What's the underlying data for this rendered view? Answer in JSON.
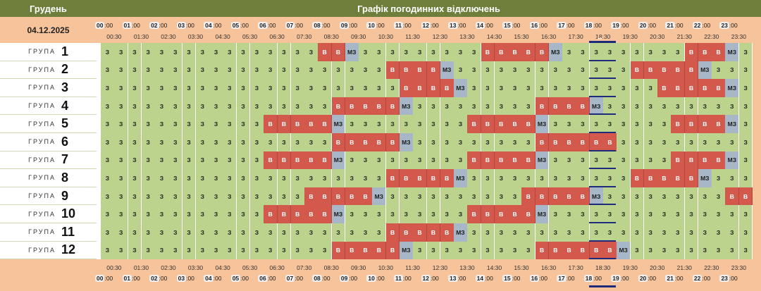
{
  "header": {
    "month": "Грудень",
    "title": "Графік погодинних відключень",
    "date": "04.12.2025"
  },
  "hours": [
    "00",
    "01",
    "02",
    "03",
    "04",
    "05",
    "06",
    "07",
    "08",
    "09",
    "10",
    "11",
    "12",
    "13",
    "14",
    "15",
    "16",
    "17",
    "18",
    "19",
    "20",
    "21",
    "22",
    "23"
  ],
  "hour_suffix": ":00",
  "half_hours": [
    "00:30",
    "01:30",
    "02:30",
    "03:30",
    "04:30",
    "05:30",
    "06:30",
    "07:30",
    "08:30",
    "09:30",
    "10:30",
    "11:30",
    "12:30",
    "13:30",
    "14:30",
    "15:30",
    "16:30",
    "17:30",
    "18:30",
    "19:30",
    "20:30",
    "21:30",
    "22:30",
    "23:30"
  ],
  "group_word": "ГРУПА",
  "current_marker": "•••",
  "state_labels": {
    "z": "З",
    "b": "В",
    "m": "МЗ"
  },
  "colors": {
    "on": "#bcd38d",
    "off": "#d4594d",
    "maybe": "#a7b7c7",
    "header": "#6e7f3b",
    "band": "#f6c39a",
    "now": "#1e2a7a"
  },
  "groups": [
    {
      "num": "1",
      "cells": "zzzzzzzzzzzzzzzzbbmzzzzzzzzzbbbbbmzzzzzzzzzbbbmzzz"
    },
    {
      "num": "2",
      "cells": "zzzzzzzzzzzzzzzzzzzzzbbbbmzzzzzzzzzzzzzbbbbbmzzzzzz"
    },
    {
      "num": "3",
      "cells": "zzzzzzzzzzzzzzzzzzzzzzbbbbmzzzzzzzzzzzzzzbbbbbmzzzz"
    },
    {
      "num": "4",
      "cells": "zzzzzzzzzzzzzzzzzbbbbbmzzzzzzzzzbbbbmzzzzzzzzzzzzz"
    },
    {
      "num": "5",
      "cells": "zzzzzzzzzzzzbbbbbmzzzzzzzzzbbbbbmzzzzzzzzzbbbbmzz"
    },
    {
      "num": "6",
      "cells": "zzzzzzzzzzzzzzzzzbbbbbmzzzzzzzzzbbbbbbzzzzzzzzzzzz"
    },
    {
      "num": "7",
      "cells": "zzzzzzzzzzzzbbbbbmzzzzzzzzzbbbbbmzzzzzzzzzbbbbmzz"
    },
    {
      "num": "8",
      "cells": "zzzzzzzzzzzzzzzzzzzzzbbbbbmzzzzzzzzzzzzbbbbbmzzzzz"
    },
    {
      "num": "9",
      "cells": "zzzzzzzzzzzzzzzbbbbbmzzzzzzzzzzbbbbbmzzzzzzzzzbbbbb"
    },
    {
      "num": "10",
      "cells": "zzzzzzzzzzzzbbbbbmzzzzzzzzzbbbbbmzzzzzzzzzzzzzzzzz"
    },
    {
      "num": "11",
      "cells": "zzzzzzzzzzzzzzzzzzzzzbbbbbmzzzzzzzzzzzzzzzzzzzzzzz"
    },
    {
      "num": "12",
      "cells": "zzzzzzzzzzzzzzzzzbbbbbmzzzzzzzzzbbbbbbmzzzzzzzzzzz"
    }
  ]
}
